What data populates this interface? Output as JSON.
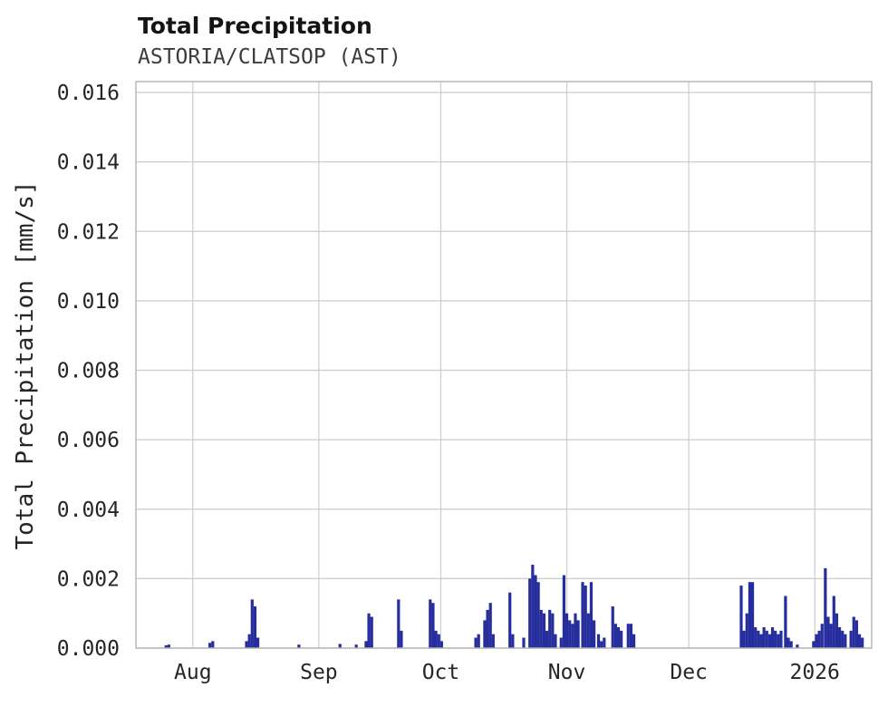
{
  "title": "Total Precipitation",
  "subtitle": "ASTORIA/CLATSOP (AST)",
  "colors": {
    "bar": "#262d9c",
    "grid": "#cccccc",
    "spine": "#b2b2b2",
    "text": "#262626",
    "subtitle_text": "#3c3c3c"
  },
  "chart_data": {
    "type": "bar",
    "title": "Total Precipitation",
    "subtitle": "ASTORIA/CLATSOP (AST)",
    "xlabel": "",
    "ylabel": "Total Precipitation [mm/s]",
    "ylim": [
      0,
      0.0163
    ],
    "grid": true,
    "legend": "none",
    "x_domain": {
      "days_total": 181,
      "note": "x axis spans mid-Jul 2025 (left edge, day 0) to mid-Jan 2026 (right edge, day 181)"
    },
    "xticks": {
      "days": [
        14,
        45,
        75,
        106,
        136,
        167
      ],
      "labels": [
        "Aug",
        "Sep",
        "Oct",
        "Nov",
        "Dec",
        "2026"
      ]
    },
    "yticks": {
      "values": [
        0,
        0.002,
        0.004,
        0.006,
        0.008,
        0.01,
        0.012,
        0.014,
        0.016
      ],
      "labels": [
        "0.000",
        "0.002",
        "0.004",
        "0.006",
        "0.008",
        "0.010",
        "0.012",
        "0.014",
        "0.016"
      ]
    },
    "bars": {
      "x_unit": "day_offset_from_left_edge",
      "y_unit": "mm/s",
      "points": [
        [
          7.4,
          8e-05
        ],
        [
          8.1,
          0.0001
        ],
        [
          18.2,
          0.00015
        ],
        [
          18.9,
          0.0002
        ],
        [
          27.2,
          0.0002
        ],
        [
          27.9,
          0.0004
        ],
        [
          28.6,
          0.0014
        ],
        [
          29.3,
          0.0012
        ],
        [
          30.0,
          0.0003
        ],
        [
          40.1,
          0.0001
        ],
        [
          50.2,
          0.00012
        ],
        [
          54.2,
          0.0001
        ],
        [
          56.6,
          0.0002
        ],
        [
          57.3,
          0.001
        ],
        [
          58.0,
          0.0009
        ],
        [
          64.6,
          0.0014
        ],
        [
          65.3,
          0.0005
        ],
        [
          72.4,
          0.0014
        ],
        [
          73.1,
          0.0013
        ],
        [
          73.8,
          0.0005
        ],
        [
          74.5,
          0.0004
        ],
        [
          75.2,
          0.0002
        ],
        [
          83.6,
          0.0003
        ],
        [
          84.3,
          0.0004
        ],
        [
          85.8,
          0.0008
        ],
        [
          86.5,
          0.0011
        ],
        [
          87.2,
          0.0013
        ],
        [
          87.9,
          0.0004
        ],
        [
          92.0,
          0.0016
        ],
        [
          92.7,
          0.0004
        ],
        [
          95.4,
          0.0003
        ],
        [
          96.9,
          0.002
        ],
        [
          97.6,
          0.0024
        ],
        [
          98.3,
          0.0021
        ],
        [
          99.0,
          0.0019
        ],
        [
          99.7,
          0.0011
        ],
        [
          100.4,
          0.001
        ],
        [
          101.1,
          0.0005
        ],
        [
          101.8,
          0.0011
        ],
        [
          102.5,
          0.001
        ],
        [
          103.2,
          0.0004
        ],
        [
          104.6,
          0.0003
        ],
        [
          105.3,
          0.0021
        ],
        [
          106.0,
          0.001
        ],
        [
          106.7,
          0.0008
        ],
        [
          107.4,
          0.0007
        ],
        [
          108.1,
          0.001
        ],
        [
          108.8,
          0.0008
        ],
        [
          109.9,
          0.0019
        ],
        [
          110.6,
          0.0018
        ],
        [
          111.3,
          0.001
        ],
        [
          112.0,
          0.0019
        ],
        [
          112.7,
          0.0008
        ],
        [
          113.8,
          0.0004
        ],
        [
          114.5,
          0.0002
        ],
        [
          115.2,
          0.0003
        ],
        [
          117.3,
          0.0012
        ],
        [
          118.0,
          0.0007
        ],
        [
          118.7,
          0.0006
        ],
        [
          119.4,
          0.0005
        ],
        [
          121.1,
          0.0007
        ],
        [
          121.8,
          0.0007
        ],
        [
          122.5,
          0.0004
        ],
        [
          148.9,
          0.0018
        ],
        [
          149.6,
          0.0005
        ],
        [
          150.3,
          0.001
        ],
        [
          151.0,
          0.0019
        ],
        [
          151.7,
          0.0019
        ],
        [
          152.4,
          0.0006
        ],
        [
          153.1,
          0.0005
        ],
        [
          153.8,
          0.0004
        ],
        [
          154.5,
          0.0006
        ],
        [
          155.2,
          0.0005
        ],
        [
          155.9,
          0.0004
        ],
        [
          156.6,
          0.0006
        ],
        [
          157.3,
          0.0005
        ],
        [
          158.0,
          0.0004
        ],
        [
          158.7,
          0.0005
        ],
        [
          159.8,
          0.0015
        ],
        [
          160.5,
          0.0003
        ],
        [
          161.2,
          0.0002
        ],
        [
          162.7,
          0.0001
        ],
        [
          166.7,
          0.0002
        ],
        [
          167.4,
          0.0004
        ],
        [
          168.1,
          0.0005
        ],
        [
          168.8,
          0.0007
        ],
        [
          169.6,
          0.0023
        ],
        [
          170.3,
          0.0009
        ],
        [
          171.0,
          0.0007
        ],
        [
          171.7,
          0.0015
        ],
        [
          172.4,
          0.001
        ],
        [
          173.1,
          0.0006
        ],
        [
          173.8,
          0.0005
        ],
        [
          174.5,
          0.0004
        ],
        [
          175.9,
          0.0005
        ],
        [
          176.6,
          0.0009
        ],
        [
          177.3,
          0.0008
        ],
        [
          178.0,
          0.0004
        ],
        [
          178.7,
          0.0003
        ]
      ]
    }
  }
}
